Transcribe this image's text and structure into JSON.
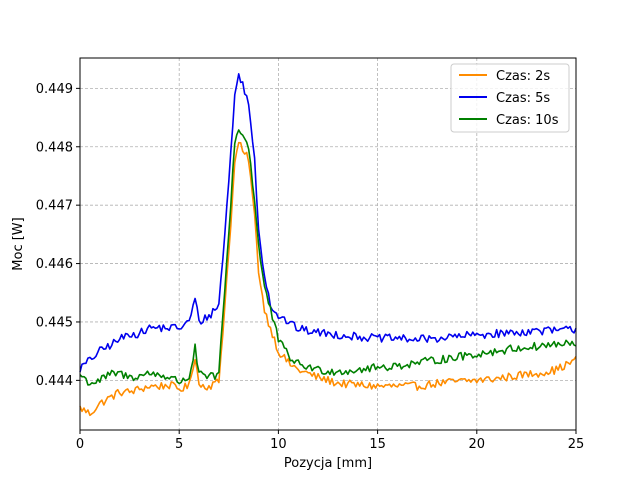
{
  "chart_data": {
    "type": "line",
    "title": "",
    "xlabel": "Pozycja [mm]",
    "ylabel": "Moc [W]",
    "xlim": [
      0,
      25
    ],
    "ylim": [
      0.44315,
      0.44952
    ],
    "xticks": [
      0,
      5,
      10,
      15,
      20,
      25
    ],
    "xtick_labels": [
      "0",
      "5",
      "10",
      "15",
      "20",
      "25"
    ],
    "yticks": [
      0.444,
      0.445,
      0.446,
      0.447,
      0.448,
      0.449
    ],
    "ytick_labels": [
      "0.444",
      "0.445",
      "0.446",
      "0.447",
      "0.448",
      "0.449"
    ],
    "grid": true,
    "legend_position": "top-right",
    "series": [
      {
        "name": "Czas: 2s",
        "color": "#ff8c00",
        "x": [
          0,
          0.5,
          1,
          1.5,
          2,
          2.5,
          3,
          3.5,
          4,
          4.5,
          5,
          5.5,
          5.8,
          6,
          6.5,
          7,
          7.2,
          7.5,
          7.8,
          8,
          8.2,
          8.5,
          8.8,
          9,
          9.3,
          9.6,
          10,
          10.5,
          11,
          12,
          13,
          14,
          15,
          16,
          17,
          18,
          19,
          20,
          21,
          22,
          23,
          24,
          25
        ],
        "y": [
          0.44353,
          0.44343,
          0.4436,
          0.4437,
          0.4438,
          0.4438,
          0.44385,
          0.4439,
          0.4439,
          0.44392,
          0.44385,
          0.4439,
          0.44442,
          0.44392,
          0.4439,
          0.44398,
          0.44485,
          0.4462,
          0.4477,
          0.4481,
          0.4479,
          0.4478,
          0.4468,
          0.4459,
          0.4452,
          0.4449,
          0.4445,
          0.4443,
          0.44418,
          0.44405,
          0.44395,
          0.44392,
          0.4439,
          0.4439,
          0.4439,
          0.44395,
          0.44398,
          0.444,
          0.44403,
          0.44408,
          0.44412,
          0.44418,
          0.44435
        ]
      },
      {
        "name": "Czas: 5s",
        "color": "#0000ee",
        "x": [
          0,
          0.5,
          1,
          1.5,
          2,
          2.5,
          3,
          3.5,
          4,
          4.5,
          5,
          5.5,
          5.8,
          6,
          6.5,
          7,
          7.2,
          7.5,
          7.8,
          8,
          8.2,
          8.5,
          8.8,
          9,
          9.3,
          9.6,
          10,
          10.5,
          11,
          12,
          13,
          14,
          15,
          16,
          17,
          18,
          19,
          20,
          21,
          22,
          23,
          24,
          25
        ],
        "y": [
          0.4442,
          0.44435,
          0.4445,
          0.4446,
          0.4447,
          0.4448,
          0.4448,
          0.4449,
          0.4449,
          0.4449,
          0.4449,
          0.445,
          0.4454,
          0.445,
          0.4451,
          0.4453,
          0.4461,
          0.4474,
          0.4489,
          0.4492,
          0.4491,
          0.4487,
          0.4478,
          0.4466,
          0.4458,
          0.4453,
          0.4451,
          0.445,
          0.44488,
          0.44482,
          0.44478,
          0.44475,
          0.44472,
          0.44472,
          0.4447,
          0.44472,
          0.44475,
          0.44478,
          0.4448,
          0.44482,
          0.44485,
          0.44485,
          0.44488
        ]
      },
      {
        "name": "Czas: 10s",
        "color": "#008000",
        "x": [
          0,
          0.5,
          1,
          1.5,
          2,
          2.5,
          3,
          3.5,
          4,
          4.5,
          5,
          5.5,
          5.8,
          6,
          6.5,
          7,
          7.2,
          7.5,
          7.8,
          8,
          8.2,
          8.5,
          8.8,
          9,
          9.3,
          9.6,
          10,
          10.5,
          11,
          12,
          13,
          14,
          15,
          16,
          17,
          18,
          19,
          20,
          21,
          22,
          23,
          24,
          25
        ],
        "y": [
          0.4441,
          0.44395,
          0.444,
          0.4441,
          0.44412,
          0.44405,
          0.44408,
          0.44412,
          0.4441,
          0.44405,
          0.44398,
          0.44405,
          0.44455,
          0.4441,
          0.44405,
          0.4441,
          0.4451,
          0.4465,
          0.4481,
          0.4483,
          0.4482,
          0.448,
          0.4471,
          0.4463,
          0.4456,
          0.4452,
          0.4447,
          0.44442,
          0.44428,
          0.44418,
          0.44415,
          0.44418,
          0.44422,
          0.44425,
          0.4443,
          0.44435,
          0.4444,
          0.44445,
          0.4445,
          0.44455,
          0.44458,
          0.44462,
          0.44462
        ]
      }
    ]
  }
}
